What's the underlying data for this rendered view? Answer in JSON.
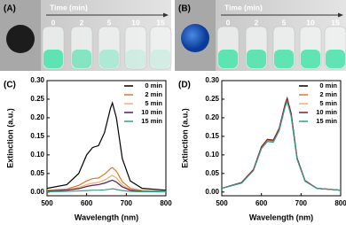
{
  "photos": [
    {
      "label": "(A)",
      "time_label": "Time (min)",
      "times": [
        "0",
        "2",
        "5",
        "10",
        "15"
      ]
    },
    {
      "label": "(B)",
      "time_label": "Time (min)",
      "times": [
        "0",
        "2",
        "5",
        "10",
        "15"
      ]
    }
  ],
  "chart_data": [
    {
      "type": "line",
      "label": "(C)",
      "x_label": "Wavelength (nm)",
      "y_label": "Extinction (a.u.)",
      "xlim": [
        500,
        800
      ],
      "xticks": [
        500,
        600,
        700,
        800
      ],
      "ylim": [
        -0.01,
        0.3
      ],
      "yticks": [
        {
          "value": 0,
          "label": "0.00"
        },
        {
          "value": 0.05,
          "label": "0.05"
        },
        {
          "value": 0.1,
          "label": "0.10"
        },
        {
          "value": 0.15,
          "label": "0.15"
        },
        {
          "value": 0.2,
          "label": "0.20"
        },
        {
          "value": 0.25,
          "label": "0.25"
        },
        {
          "value": 0.3,
          "label": "0.30"
        }
      ],
      "x": [
        500,
        550,
        580,
        600,
        615,
        630,
        645,
        660,
        665,
        675,
        690,
        710,
        740,
        800
      ],
      "series": [
        {
          "name": "0 min",
          "color": "#000000",
          "values": [
            0.01,
            0.02,
            0.05,
            0.1,
            0.12,
            0.125,
            0.16,
            0.225,
            0.24,
            0.2,
            0.09,
            0.03,
            0.01,
            0.005
          ]
        },
        {
          "name": "2 min",
          "color": "#e07828",
          "values": [
            0.005,
            0.008,
            0.018,
            0.03,
            0.036,
            0.038,
            0.048,
            0.063,
            0.066,
            0.056,
            0.028,
            0.01,
            0.004,
            0.002
          ]
        },
        {
          "name": "5 min",
          "color": "#f0b070",
          "values": [
            0.004,
            0.006,
            0.012,
            0.02,
            0.024,
            0.026,
            0.032,
            0.042,
            0.045,
            0.038,
            0.019,
            0.007,
            0.003,
            0.002
          ]
        },
        {
          "name": "10 min",
          "color": "#5a1a5a",
          "values": [
            0.003,
            0.005,
            0.009,
            0.015,
            0.018,
            0.02,
            0.024,
            0.03,
            0.032,
            0.027,
            0.014,
            0.005,
            0.002,
            0.001
          ]
        },
        {
          "name": "15 min",
          "color": "#30a080",
          "values": [
            0.001,
            0.002,
            0.003,
            0.004,
            0.005,
            0.005,
            0.006,
            0.008,
            0.009,
            0.007,
            0.004,
            0.002,
            0.001,
            0.001
          ]
        }
      ]
    },
    {
      "type": "line",
      "label": "(D)",
      "x_label": "Wavelength (nm)",
      "y_label": "Extinction (a.u.)",
      "xlim": [
        500,
        800
      ],
      "xticks": [
        500,
        600,
        700,
        800
      ],
      "ylim": [
        -0.01,
        0.3
      ],
      "yticks": [
        {
          "value": 0,
          "label": "0.00"
        },
        {
          "value": 0.05,
          "label": "0.05"
        },
        {
          "value": 0.1,
          "label": "0.10"
        },
        {
          "value": 0.15,
          "label": "0.15"
        },
        {
          "value": 0.2,
          "label": "0.20"
        },
        {
          "value": 0.25,
          "label": "0.25"
        },
        {
          "value": 0.3,
          "label": "0.30"
        }
      ],
      "x": [
        500,
        550,
        580,
        600,
        615,
        630,
        645,
        660,
        665,
        675,
        690,
        710,
        740,
        800
      ],
      "series": [
        {
          "name": "0 min",
          "color": "#000000",
          "values": [
            0.01,
            0.025,
            0.06,
            0.12,
            0.14,
            0.138,
            0.17,
            0.235,
            0.25,
            0.21,
            0.09,
            0.03,
            0.01,
            0.005
          ]
        },
        {
          "name": "2 min",
          "color": "#e07828",
          "values": [
            0.01,
            0.025,
            0.06,
            0.12,
            0.139,
            0.137,
            0.169,
            0.234,
            0.248,
            0.208,
            0.09,
            0.03,
            0.01,
            0.005
          ]
        },
        {
          "name": "5 min",
          "color": "#f0b070",
          "values": [
            0.01,
            0.024,
            0.059,
            0.118,
            0.137,
            0.135,
            0.167,
            0.232,
            0.246,
            0.206,
            0.089,
            0.03,
            0.01,
            0.005
          ]
        },
        {
          "name": "10 min",
          "color": "#8b1a2a",
          "values": [
            0.01,
            0.026,
            0.061,
            0.122,
            0.142,
            0.14,
            0.172,
            0.238,
            0.253,
            0.212,
            0.092,
            0.031,
            0.01,
            0.005
          ]
        },
        {
          "name": "15 min",
          "color": "#30a080",
          "values": [
            0.01,
            0.024,
            0.058,
            0.117,
            0.136,
            0.134,
            0.166,
            0.23,
            0.244,
            0.204,
            0.088,
            0.029,
            0.01,
            0.005
          ]
        }
      ]
    }
  ]
}
